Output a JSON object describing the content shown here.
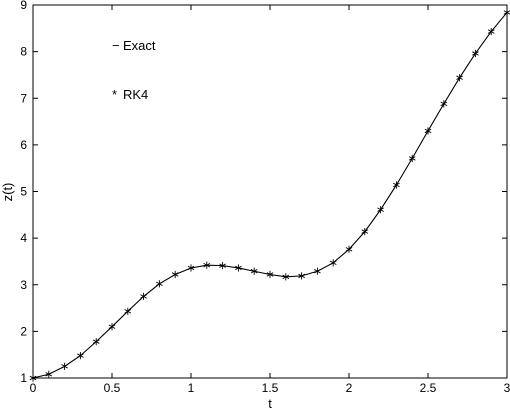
{
  "chart_data": {
    "type": "line",
    "xlabel": "t",
    "ylabel": "z(t)",
    "xlim": [
      0,
      3
    ],
    "ylim": [
      1,
      9
    ],
    "xticks": [
      0,
      0.5,
      1,
      1.5,
      2,
      2.5,
      3
    ],
    "xtick_labels": [
      "0",
      "0.5",
      "1",
      "1.5",
      "2",
      "2.5",
      "3"
    ],
    "yticks": [
      1,
      2,
      3,
      4,
      5,
      6,
      7,
      8,
      9
    ],
    "ytick_labels": [
      "1",
      "2",
      "3",
      "4",
      "5",
      "6",
      "7",
      "8",
      "9"
    ],
    "grid": false,
    "legend": {
      "placement": "top-left",
      "entries": [
        {
          "marker": "−",
          "label": "Exact"
        },
        {
          "marker": "*",
          "label": "RK4"
        }
      ]
    },
    "x": [
      0,
      0.1,
      0.2,
      0.3,
      0.4,
      0.5,
      0.6,
      0.7,
      0.8,
      0.9,
      1.0,
      1.1,
      1.2,
      1.3,
      1.4,
      1.5,
      1.6,
      1.7,
      1.8,
      1.9,
      2.0,
      2.1,
      2.2,
      2.3,
      2.4,
      2.5,
      2.6,
      2.7,
      2.8,
      2.9,
      3.0
    ],
    "series": [
      {
        "name": "Exact",
        "style": "line",
        "values": [
          1.0,
          1.08,
          1.25,
          1.48,
          1.78,
          2.1,
          2.43,
          2.75,
          3.02,
          3.22,
          3.36,
          3.42,
          3.41,
          3.36,
          3.29,
          3.22,
          3.17,
          3.19,
          3.29,
          3.47,
          3.76,
          4.14,
          4.61,
          5.14,
          5.71,
          6.3,
          6.88,
          7.44,
          7.96,
          8.43,
          8.84
        ]
      },
      {
        "name": "RK4",
        "style": "marker",
        "marker": "*",
        "values": [
          1.0,
          1.08,
          1.25,
          1.48,
          1.78,
          2.1,
          2.43,
          2.75,
          3.02,
          3.22,
          3.36,
          3.42,
          3.41,
          3.36,
          3.29,
          3.22,
          3.17,
          3.19,
          3.29,
          3.47,
          3.76,
          4.14,
          4.61,
          5.14,
          5.71,
          6.3,
          6.88,
          7.44,
          7.96,
          8.43,
          8.84
        ]
      }
    ]
  }
}
